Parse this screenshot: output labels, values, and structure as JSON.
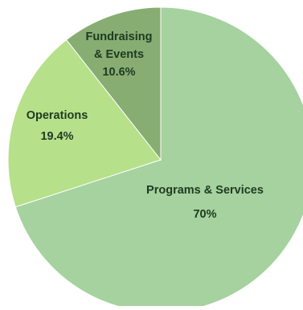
{
  "chart_data": {
    "type": "pie",
    "start_angle_deg": 0,
    "direction": "clockwise",
    "slices": [
      {
        "label": "Programs & Services",
        "value": 70,
        "value_label": "70%",
        "color": "#a5d29e"
      },
      {
        "label": "Operations",
        "value": 19.4,
        "value_label": "19.4%",
        "color": "#b6e08a"
      },
      {
        "label": "Fundraising\n& Events",
        "value": 10.6,
        "value_label": "10.6%",
        "color": "#87ad72"
      }
    ],
    "title": "",
    "legend": "none",
    "data_labels": "inside"
  }
}
